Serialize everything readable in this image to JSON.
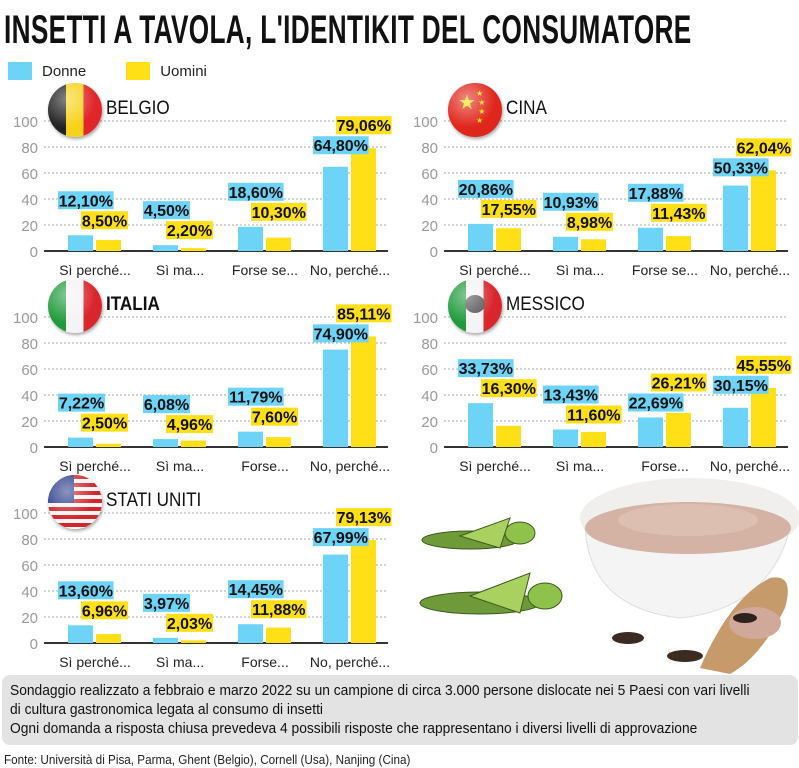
{
  "title": "INSETTI A TAVOLA, L'IDENTIKIT DEL CONSUMATORE",
  "colors": {
    "donne": "#6dd3f7",
    "uomini": "#ffe016",
    "grid": "#aaaaaa",
    "axis": "#333333",
    "tick": "#9a9a9a"
  },
  "legend": [
    {
      "label": "Donne",
      "color": "#6dd3f7"
    },
    {
      "label": "Uomini",
      "color": "#ffe016"
    }
  ],
  "chart_data": [
    {
      "type": "bar",
      "title": "BELGIO",
      "flag": "belgium-flag",
      "categories": [
        "Sì perché...",
        "Sì ma...",
        "Forse se...",
        "No, perché..."
      ],
      "yticks": [
        "0",
        "20",
        "40",
        "60",
        "80",
        "100"
      ],
      "ylim": [
        0,
        100
      ],
      "grid": true,
      "series": [
        {
          "name": "Donne",
          "values": [
            12.1,
            4.5,
            18.6,
            64.8
          ],
          "labels": [
            "12,10%",
            "4,50%",
            "18,60%",
            "64,80%"
          ]
        },
        {
          "name": "Uomini",
          "values": [
            8.5,
            2.2,
            10.3,
            79.06
          ],
          "labels": [
            "8,50%",
            "2,20%",
            "10,30%",
            "79,06%"
          ]
        }
      ]
    },
    {
      "type": "bar",
      "title": "CINA",
      "flag": "china-flag",
      "categories": [
        "Sì perché...",
        "Sì ma...",
        "Forse se...",
        "No, perché..."
      ],
      "yticks": [
        "0",
        "20",
        "40",
        "60",
        "80",
        "100"
      ],
      "ylim": [
        0,
        100
      ],
      "grid": true,
      "series": [
        {
          "name": "Donne",
          "values": [
            20.86,
            10.93,
            17.88,
            50.33
          ],
          "labels": [
            "20,86%",
            "10,93%",
            "17,88%",
            "50,33%"
          ]
        },
        {
          "name": "Uomini",
          "values": [
            17.55,
            8.98,
            11.43,
            62.04
          ],
          "labels": [
            "17,55%",
            "8,98%",
            "11,43%",
            "62,04%"
          ]
        }
      ]
    },
    {
      "type": "bar",
      "title": "ITALIA",
      "flag": "italy-flag",
      "categories": [
        "Sì perché...",
        "Sì ma...",
        "Forse...",
        "No, perché..."
      ],
      "yticks": [
        "0",
        "20",
        "40",
        "60",
        "80",
        "100"
      ],
      "ylim": [
        0,
        100
      ],
      "grid": true,
      "series": [
        {
          "name": "Donne",
          "values": [
            7.22,
            6.08,
            11.79,
            74.9
          ],
          "labels": [
            "7,22%",
            "6,08%",
            "11,79%",
            "74,90%"
          ]
        },
        {
          "name": "Uomini",
          "values": [
            2.5,
            4.96,
            7.6,
            85.11
          ],
          "labels": [
            "2,50%",
            "4,96%",
            "7,60%",
            "85,11%"
          ]
        }
      ]
    },
    {
      "type": "bar",
      "title": "MESSICO",
      "flag": "mexico-flag",
      "categories": [
        "Sì perché...",
        "Sì ma...",
        "Forse...",
        "No, perché..."
      ],
      "yticks": [
        "0",
        "20",
        "40",
        "60",
        "80",
        "100"
      ],
      "ylim": [
        0,
        100
      ],
      "grid": true,
      "series": [
        {
          "name": "Donne",
          "values": [
            33.73,
            13.43,
            22.69,
            30.15
          ],
          "labels": [
            "33,73%",
            "13,43%",
            "22,69%",
            "30,15%"
          ]
        },
        {
          "name": "Uomini",
          "values": [
            16.3,
            11.6,
            26.21,
            45.55
          ],
          "labels": [
            "16,30%",
            "11,60%",
            "26,21%",
            "45,55%"
          ]
        }
      ]
    },
    {
      "type": "bar",
      "title": "STATI UNITI",
      "flag": "usa-flag",
      "categories": [
        "Sì perché...",
        "Sì ma...",
        "Forse...",
        "No, perché..."
      ],
      "yticks": [
        "0",
        "20",
        "40",
        "60",
        "80",
        "100"
      ],
      "ylim": [
        0,
        100
      ],
      "grid": true,
      "series": [
        {
          "name": "Donne",
          "values": [
            13.6,
            3.97,
            14.45,
            67.99
          ],
          "labels": [
            "13,60%",
            "3,97%",
            "14,45%",
            "67,99%"
          ]
        },
        {
          "name": "Uomini",
          "values": [
            6.96,
            2.03,
            11.88,
            79.13
          ],
          "labels": [
            "6,96%",
            "2,03%",
            "11,88%",
            "79,13%"
          ]
        }
      ]
    }
  ],
  "note": {
    "lines": [
      "Sondaggio realizzato a febbraio e marzo 2022 su un campione di circa 3.000 persone dislocate nei 5 Paesi con vari livelli",
      "di cultura gastronomica legata al consumo di insetti",
      "Ogni domanda a risposta chiusa prevedeva 4 possibili risposte che rappresentano i diversi livelli di approvazione"
    ]
  },
  "source": "Fonte: Università di Pisa, Parma, Ghent (Belgio), Cornell (Usa), Nanjing (Cina)"
}
